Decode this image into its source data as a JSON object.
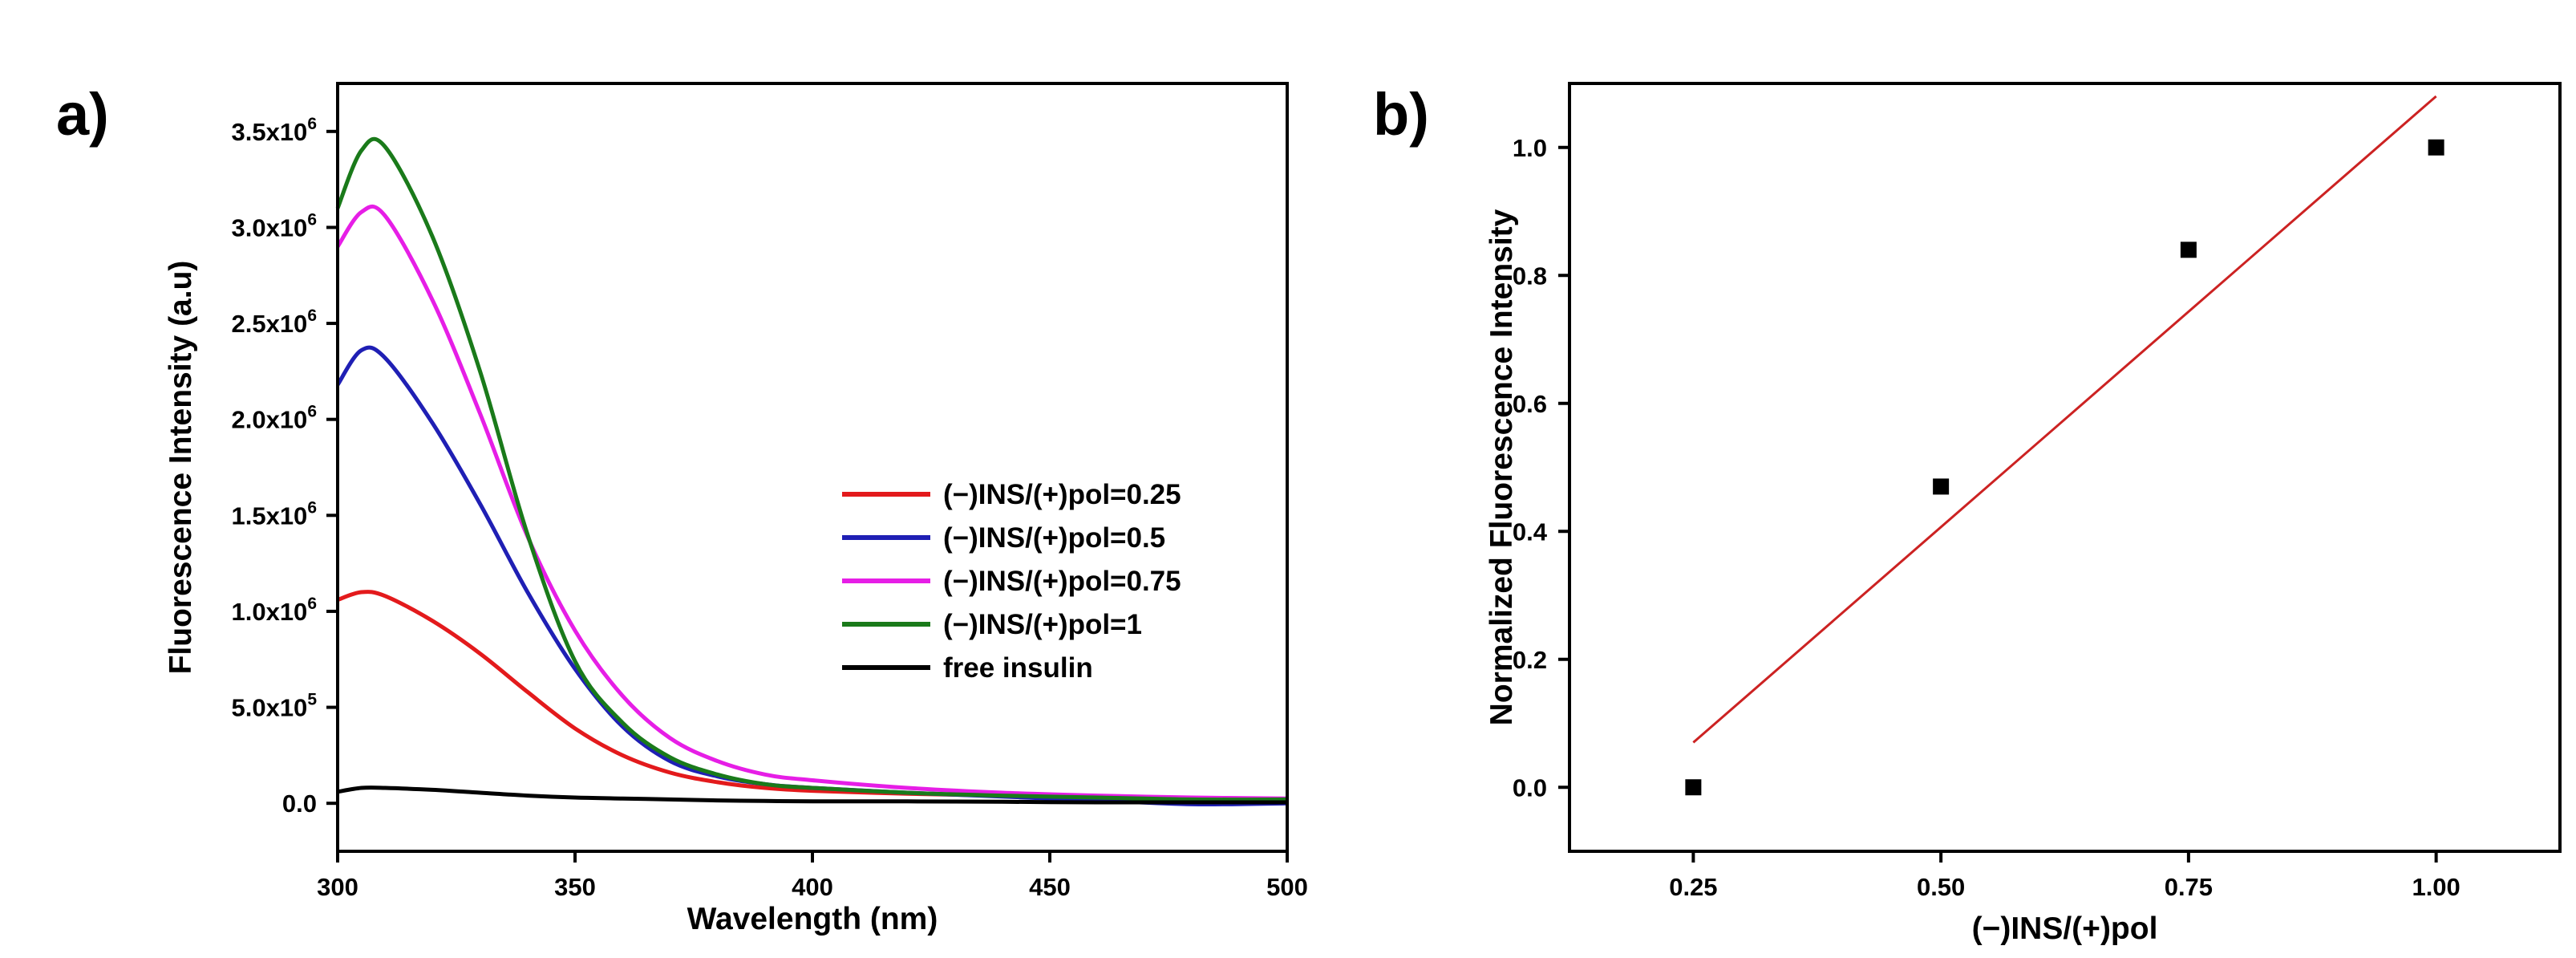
{
  "panels": {
    "a": "a)",
    "b": "b)"
  },
  "chart_data": [
    {
      "type": "line",
      "panel": "a)",
      "xlabel": "Wavelength (nm)",
      "ylabel": "Fluorescence Intensity (a.u)",
      "xlim": [
        300,
        500
      ],
      "ylim": [
        -250000,
        3750000
      ],
      "xticks": [
        {
          "v": 300,
          "label": "300"
        },
        {
          "v": 350,
          "label": "350"
        },
        {
          "v": 400,
          "label": "400"
        },
        {
          "v": 450,
          "label": "450"
        },
        {
          "v": 500,
          "label": "500"
        }
      ],
      "yticks": [
        {
          "v": 0,
          "mant": "0.0",
          "exp": ""
        },
        {
          "v": 500000,
          "mant": "5.0x10",
          "exp": "5"
        },
        {
          "v": 1000000,
          "mant": "1.0x10",
          "exp": "6"
        },
        {
          "v": 1500000,
          "mant": "1.5x10",
          "exp": "6"
        },
        {
          "v": 2000000,
          "mant": "2.0x10",
          "exp": "6"
        },
        {
          "v": 2500000,
          "mant": "2.5x10",
          "exp": "6"
        },
        {
          "v": 3000000,
          "mant": "3.0x10",
          "exp": "6"
        },
        {
          "v": 3500000,
          "mant": "3.5x10",
          "exp": "6"
        }
      ],
      "legend_position": "center-right",
      "x": [
        300,
        305,
        310,
        320,
        330,
        340,
        350,
        360,
        370,
        380,
        390,
        400,
        420,
        440,
        460,
        480,
        500
      ],
      "series": [
        {
          "name": "(−)INS/(+)pol=0.25",
          "color": "#e31a1c",
          "values": [
            1060000,
            1100000,
            1080000,
            950000,
            780000,
            580000,
            390000,
            250000,
            160000,
            110000,
            80000,
            65000,
            50000,
            40000,
            30000,
            25000,
            20000
          ]
        },
        {
          "name": "(−)INS/(+)pol=0.5",
          "color": "#1f1fb4",
          "values": [
            2180000,
            2360000,
            2320000,
            1980000,
            1560000,
            1100000,
            700000,
            400000,
            220000,
            140000,
            100000,
            80000,
            55000,
            35000,
            15000,
            -5000,
            0
          ]
        },
        {
          "name": "(−)INS/(+)pol=0.75",
          "color": "#e61ee6",
          "values": [
            2900000,
            3080000,
            3060000,
            2620000,
            2030000,
            1390000,
            900000,
            560000,
            340000,
            220000,
            150000,
            120000,
            80000,
            55000,
            40000,
            30000,
            25000
          ]
        },
        {
          "name": "(−)INS/(+)pol=1",
          "color": "#1a7a1a",
          "values": [
            3100000,
            3400000,
            3420000,
            2950000,
            2250000,
            1400000,
            740000,
            420000,
            240000,
            150000,
            100000,
            80000,
            55000,
            40000,
            30000,
            20000,
            20000
          ]
        },
        {
          "name": "free insulin",
          "color": "#000000",
          "values": [
            60000,
            80000,
            80000,
            70000,
            55000,
            40000,
            30000,
            25000,
            20000,
            15000,
            12000,
            10000,
            10000,
            8000,
            5000,
            5000,
            5000
          ]
        }
      ]
    },
    {
      "type": "scatter",
      "panel": "b)",
      "xlabel": "(−)INS/(+)pol",
      "ylabel": "Normalized Fluorescence Intensity",
      "xlim": [
        0.125,
        1.125
      ],
      "ylim": [
        -0.1,
        1.1
      ],
      "xticks": [
        {
          "v": 0.25,
          "label": "0.25"
        },
        {
          "v": 0.5,
          "label": "0.50"
        },
        {
          "v": 0.75,
          "label": "0.75"
        },
        {
          "v": 1.0,
          "label": "1.00"
        }
      ],
      "yticks": [
        {
          "v": 0,
          "label": "0.0"
        },
        {
          "v": 0.2,
          "label": "0.2"
        },
        {
          "v": 0.4,
          "label": "0.4"
        },
        {
          "v": 0.6,
          "label": "0.6"
        },
        {
          "v": 0.8,
          "label": "0.8"
        },
        {
          "v": 1.0,
          "label": "1.0"
        }
      ],
      "points": {
        "x": [
          0.25,
          0.5,
          0.75,
          1.0
        ],
        "y": [
          0.0,
          0.47,
          0.84,
          1.0
        ],
        "color": "#000000"
      },
      "fit_line": {
        "x": [
          0.25,
          1.0
        ],
        "y": [
          0.07,
          1.08
        ],
        "color": "#cc2222"
      }
    }
  ]
}
